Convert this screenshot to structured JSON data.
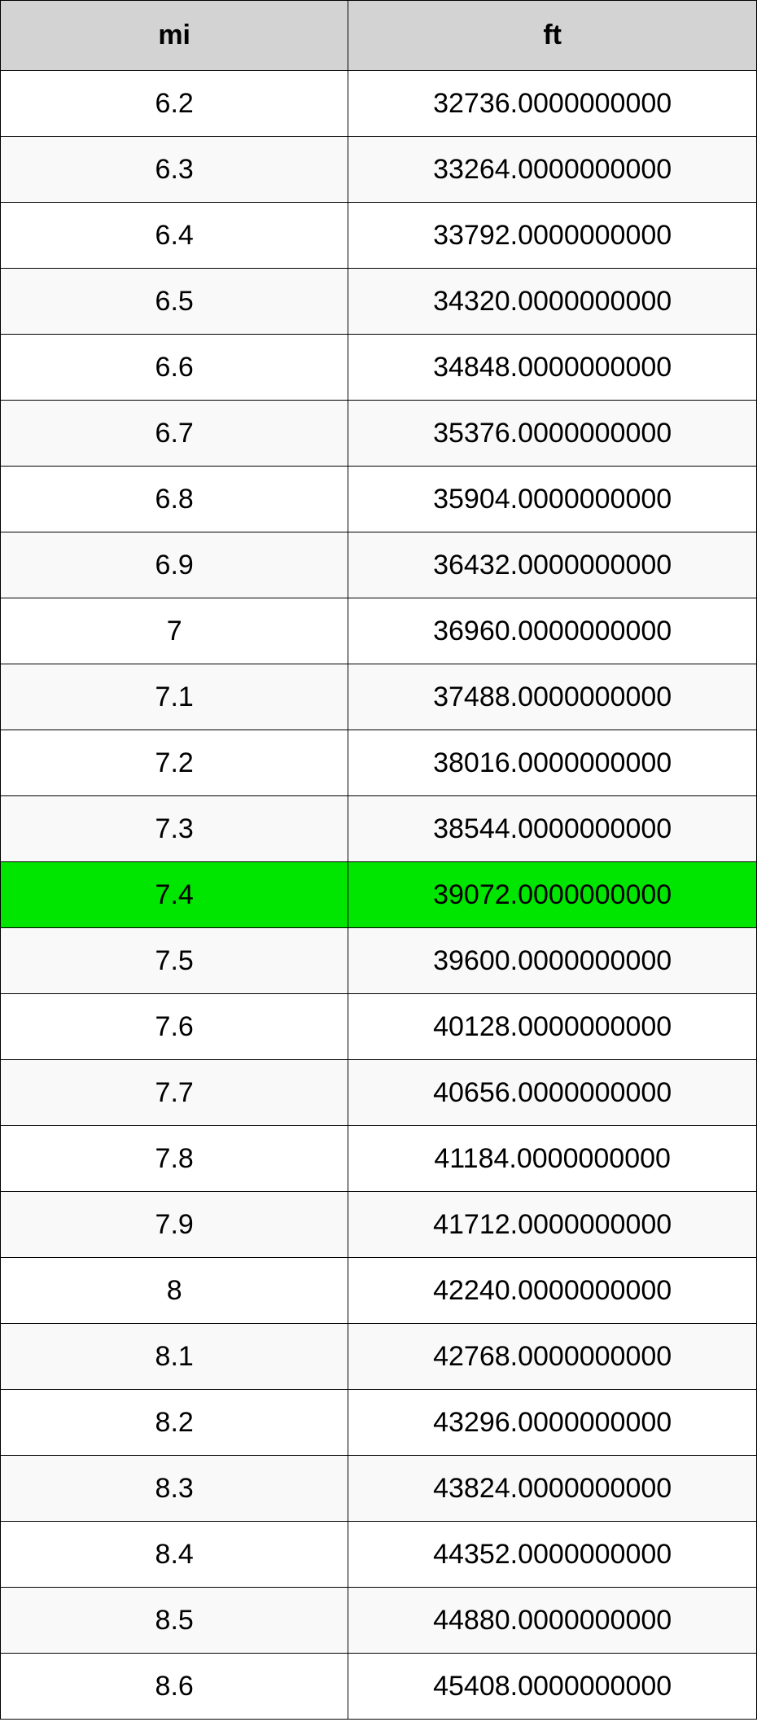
{
  "table": {
    "columns": [
      {
        "key": "mi",
        "label": "mi"
      },
      {
        "key": "ft",
        "label": "ft"
      }
    ],
    "highlight_index": 12,
    "colors": {
      "header_bg": "#d3d3d3",
      "row_even_bg": "#ffffff",
      "row_odd_bg": "#f9f9f9",
      "highlight_bg": "#00e600",
      "border": "#000000",
      "text": "#000000"
    },
    "rows": [
      {
        "mi": "6.2",
        "ft": "32736.0000000000"
      },
      {
        "mi": "6.3",
        "ft": "33264.0000000000"
      },
      {
        "mi": "6.4",
        "ft": "33792.0000000000"
      },
      {
        "mi": "6.5",
        "ft": "34320.0000000000"
      },
      {
        "mi": "6.6",
        "ft": "34848.0000000000"
      },
      {
        "mi": "6.7",
        "ft": "35376.0000000000"
      },
      {
        "mi": "6.8",
        "ft": "35904.0000000000"
      },
      {
        "mi": "6.9",
        "ft": "36432.0000000000"
      },
      {
        "mi": "7",
        "ft": "36960.0000000000"
      },
      {
        "mi": "7.1",
        "ft": "37488.0000000000"
      },
      {
        "mi": "7.2",
        "ft": "38016.0000000000"
      },
      {
        "mi": "7.3",
        "ft": "38544.0000000000"
      },
      {
        "mi": "7.4",
        "ft": "39072.0000000000"
      },
      {
        "mi": "7.5",
        "ft": "39600.0000000000"
      },
      {
        "mi": "7.6",
        "ft": "40128.0000000000"
      },
      {
        "mi": "7.7",
        "ft": "40656.0000000000"
      },
      {
        "mi": "7.8",
        "ft": "41184.0000000000"
      },
      {
        "mi": "7.9",
        "ft": "41712.0000000000"
      },
      {
        "mi": "8",
        "ft": "42240.0000000000"
      },
      {
        "mi": "8.1",
        "ft": "42768.0000000000"
      },
      {
        "mi": "8.2",
        "ft": "43296.0000000000"
      },
      {
        "mi": "8.3",
        "ft": "43824.0000000000"
      },
      {
        "mi": "8.4",
        "ft": "44352.0000000000"
      },
      {
        "mi": "8.5",
        "ft": "44880.0000000000"
      },
      {
        "mi": "8.6",
        "ft": "45408.0000000000"
      }
    ]
  }
}
